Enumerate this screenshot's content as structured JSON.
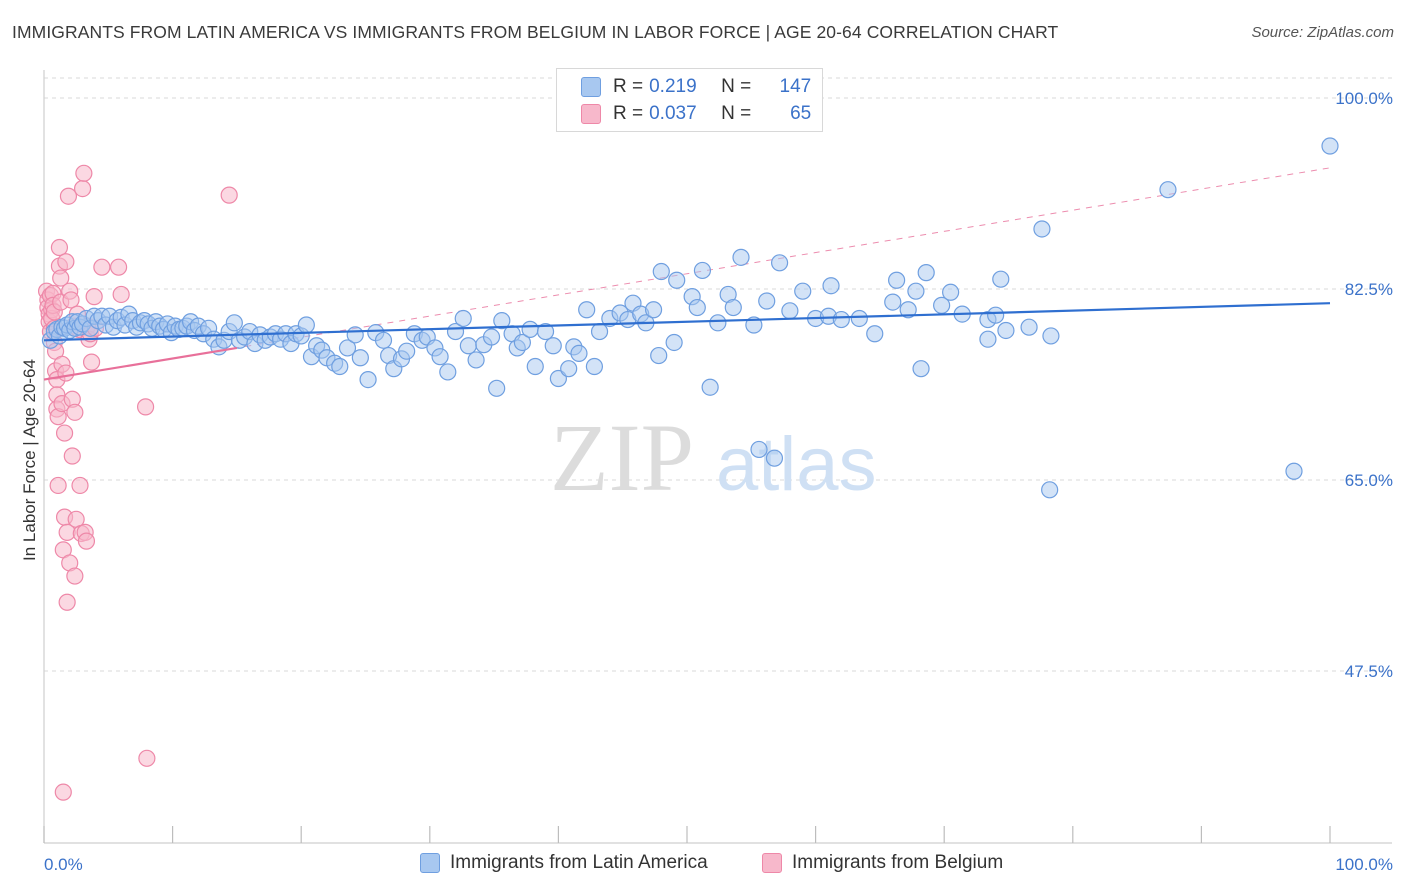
{
  "header": {
    "title": "IMMIGRANTS FROM LATIN AMERICA VS IMMIGRANTS FROM BELGIUM IN LABOR FORCE | AGE 20-64 CORRELATION CHART",
    "source": "Source: ZipAtlas.com"
  },
  "legend_top": {
    "rows": [
      {
        "r_label": "R =",
        "r_value": "0.219",
        "n_label": "N =",
        "n_value": "147"
      },
      {
        "r_label": "R =",
        "r_value": "0.037",
        "n_label": "N =",
        "n_value": "65"
      }
    ]
  },
  "legend_bottom": {
    "items": [
      "Immigrants from Latin America",
      "Immigrants from Belgium"
    ]
  },
  "watermark": {
    "zip": "ZIP",
    "atlas": "atlas"
  },
  "colors": {
    "blue_fill": "#a8c8f0",
    "blue_stroke": "#6f9fe0",
    "blue_line": "#2f6fd0",
    "pink_fill": "#f7b8cb",
    "pink_stroke": "#ee88a8",
    "pink_line": "#e8709a",
    "axis_label": "#3b72c9",
    "grid": "#d9d9d9"
  },
  "chart_data": {
    "type": "scatter",
    "title": "IMMIGRANTS FROM LATIN AMERICA VS IMMIGRANTS FROM BELGIUM IN LABOR FORCE | AGE 20-64 CORRELATION CHART",
    "xlabel": "",
    "ylabel": "In Labor Force | Age 20-64",
    "x_tick_labels": [
      "0.0%",
      "100.0%"
    ],
    "y_tick_labels": [
      "100.0%",
      "82.5%",
      "65.0%",
      "47.5%"
    ],
    "y_ticks": [
      100.0,
      82.5,
      65.0,
      47.5
    ],
    "xlim": [
      0,
      100
    ],
    "ylim": [
      29.5,
      101.5
    ],
    "grid": true,
    "legend_position": "bottom",
    "series": [
      {
        "name": "Immigrants from Latin America",
        "color": "#a8c8f0",
        "r": 0.219,
        "n": 147,
        "trend": {
          "x": [
            0,
            100
          ],
          "y": [
            77.8,
            81.2
          ]
        },
        "points": [
          [
            0.5,
            77.8
          ],
          [
            0.8,
            78.6
          ],
          [
            1.0,
            78.8
          ],
          [
            1.2,
            78.2
          ],
          [
            1.4,
            79.0
          ],
          [
            1.6,
            78.9
          ],
          [
            1.8,
            79.2
          ],
          [
            2.0,
            78.7
          ],
          [
            2.2,
            79.5
          ],
          [
            2.4,
            78.9
          ],
          [
            2.6,
            79.5
          ],
          [
            2.8,
            79.0
          ],
          [
            3.0,
            79.3
          ],
          [
            3.3,
            79.8
          ],
          [
            3.6,
            78.9
          ],
          [
            3.9,
            80.0
          ],
          [
            4.2,
            79.6
          ],
          [
            4.5,
            80.0
          ],
          [
            4.8,
            79.2
          ],
          [
            5.1,
            80.0
          ],
          [
            5.4,
            79.0
          ],
          [
            5.7,
            79.6
          ],
          [
            6.0,
            79.9
          ],
          [
            6.3,
            79.2
          ],
          [
            6.6,
            80.2
          ],
          [
            6.9,
            79.6
          ],
          [
            7.2,
            79.0
          ],
          [
            7.5,
            79.4
          ],
          [
            7.8,
            79.6
          ],
          [
            8.1,
            79.3
          ],
          [
            8.4,
            78.9
          ],
          [
            8.7,
            79.5
          ],
          [
            9.0,
            79.1
          ],
          [
            9.3,
            78.8
          ],
          [
            9.6,
            79.3
          ],
          [
            9.9,
            78.5
          ],
          [
            10.2,
            79.1
          ],
          [
            10.5,
            78.8
          ],
          [
            10.8,
            78.9
          ],
          [
            11.1,
            79.1
          ],
          [
            11.4,
            79.5
          ],
          [
            11.7,
            78.7
          ],
          [
            12.0,
            79.1
          ],
          [
            12.4,
            78.4
          ],
          [
            12.8,
            78.9
          ],
          [
            13.2,
            77.9
          ],
          [
            13.6,
            77.2
          ],
          [
            14.0,
            77.8
          ],
          [
            14.4,
            78.6
          ],
          [
            14.8,
            79.4
          ],
          [
            15.2,
            77.8
          ],
          [
            15.6,
            78.1
          ],
          [
            16.0,
            78.6
          ],
          [
            16.4,
            77.5
          ],
          [
            16.8,
            78.3
          ],
          [
            17.2,
            77.8
          ],
          [
            17.6,
            78.1
          ],
          [
            18.0,
            78.4
          ],
          [
            18.4,
            77.9
          ],
          [
            18.8,
            78.4
          ],
          [
            19.2,
            77.5
          ],
          [
            19.6,
            78.4
          ],
          [
            20.0,
            78.2
          ],
          [
            20.4,
            79.2
          ],
          [
            20.8,
            76.3
          ],
          [
            21.2,
            77.3
          ],
          [
            21.6,
            76.9
          ],
          [
            22.0,
            76.2
          ],
          [
            22.6,
            75.7
          ],
          [
            23.0,
            75.4
          ],
          [
            23.6,
            77.1
          ],
          [
            24.2,
            78.3
          ],
          [
            24.6,
            76.2
          ],
          [
            25.2,
            74.2
          ],
          [
            25.8,
            78.5
          ],
          [
            26.4,
            77.8
          ],
          [
            26.8,
            76.4
          ],
          [
            27.2,
            75.2
          ],
          [
            27.8,
            76.1
          ],
          [
            28.2,
            76.8
          ],
          [
            28.8,
            78.4
          ],
          [
            29.4,
            77.8
          ],
          [
            29.8,
            78.1
          ],
          [
            30.4,
            77.1
          ],
          [
            30.8,
            76.3
          ],
          [
            31.4,
            74.9
          ],
          [
            32.0,
            78.6
          ],
          [
            32.6,
            79.8
          ],
          [
            33.0,
            77.3
          ],
          [
            33.6,
            76.0
          ],
          [
            34.2,
            77.4
          ],
          [
            34.8,
            78.1
          ],
          [
            35.2,
            73.4
          ],
          [
            35.6,
            79.6
          ],
          [
            36.4,
            78.4
          ],
          [
            36.8,
            77.1
          ],
          [
            37.2,
            77.6
          ],
          [
            37.8,
            78.8
          ],
          [
            38.2,
            75.4
          ],
          [
            39.0,
            78.6
          ],
          [
            39.6,
            77.3
          ],
          [
            40.0,
            74.3
          ],
          [
            40.8,
            75.2
          ],
          [
            41.2,
            77.2
          ],
          [
            41.6,
            76.6
          ],
          [
            42.2,
            80.6
          ],
          [
            42.8,
            75.4
          ],
          [
            43.2,
            78.6
          ],
          [
            44.0,
            79.8
          ],
          [
            44.8,
            80.3
          ],
          [
            45.4,
            79.7
          ],
          [
            45.8,
            81.2
          ],
          [
            46.4,
            80.2
          ],
          [
            46.8,
            79.4
          ],
          [
            47.4,
            80.6
          ],
          [
            47.8,
            76.4
          ],
          [
            48.0,
            84.1
          ],
          [
            49.0,
            77.6
          ],
          [
            49.2,
            83.3
          ],
          [
            50.4,
            81.8
          ],
          [
            50.8,
            80.8
          ],
          [
            51.2,
            84.2
          ],
          [
            51.8,
            73.5
          ],
          [
            52.4,
            79.4
          ],
          [
            53.2,
            82.0
          ],
          [
            53.6,
            80.8
          ],
          [
            54.2,
            85.4
          ],
          [
            55.2,
            79.2
          ],
          [
            55.6,
            67.8
          ],
          [
            56.2,
            81.4
          ],
          [
            56.8,
            67.0
          ],
          [
            57.2,
            84.9
          ],
          [
            58.0,
            80.5
          ],
          [
            59.0,
            82.3
          ],
          [
            60.0,
            79.8
          ],
          [
            61.0,
            80.0
          ],
          [
            61.2,
            82.8
          ],
          [
            62.0,
            79.7
          ],
          [
            63.4,
            79.8
          ],
          [
            64.6,
            78.4
          ],
          [
            66.0,
            81.3
          ],
          [
            66.3,
            83.3
          ],
          [
            67.2,
            80.6
          ],
          [
            67.8,
            82.3
          ],
          [
            68.2,
            75.2
          ],
          [
            68.6,
            84.0
          ],
          [
            69.8,
            81.0
          ],
          [
            70.5,
            82.2
          ],
          [
            71.4,
            80.2
          ],
          [
            73.4,
            77.9
          ],
          [
            73.4,
            79.7
          ],
          [
            74.0,
            80.1
          ],
          [
            74.4,
            83.4
          ],
          [
            74.8,
            78.7
          ],
          [
            76.6,
            79.0
          ],
          [
            77.6,
            88.0
          ],
          [
            78.3,
            78.2
          ],
          [
            78.2,
            64.1
          ],
          [
            87.4,
            91.6
          ],
          [
            97.2,
            65.8
          ],
          [
            100.0,
            95.6
          ]
        ]
      },
      {
        "name": "Immigrants from Belgium",
        "color": "#f7b8cb",
        "r": 0.037,
        "n": 65,
        "trend": {
          "x": [
            0,
            15
          ],
          "y": [
            74.2,
            77.1
          ]
        },
        "trend_extended": {
          "x": [
            0,
            100
          ],
          "y": [
            74.2,
            93.6
          ]
        },
        "points": [
          [
            0.2,
            82.3
          ],
          [
            0.3,
            81.5
          ],
          [
            0.3,
            80.8
          ],
          [
            0.4,
            80.2
          ],
          [
            0.4,
            79.5
          ],
          [
            0.5,
            78.6
          ],
          [
            0.5,
            81.9
          ],
          [
            0.6,
            80.6
          ],
          [
            0.6,
            79.8
          ],
          [
            0.7,
            82.1
          ],
          [
            0.7,
            81.0
          ],
          [
            0.8,
            80.4
          ],
          [
            0.8,
            78.9
          ],
          [
            0.8,
            77.6
          ],
          [
            0.9,
            76.8
          ],
          [
            0.9,
            75.0
          ],
          [
            1.0,
            74.2
          ],
          [
            1.0,
            72.8
          ],
          [
            1.0,
            71.5
          ],
          [
            1.1,
            70.8
          ],
          [
            1.1,
            64.5
          ],
          [
            1.2,
            86.3
          ],
          [
            1.2,
            84.6
          ],
          [
            1.3,
            83.5
          ],
          [
            1.3,
            81.3
          ],
          [
            1.4,
            75.6
          ],
          [
            1.4,
            72.0
          ],
          [
            1.5,
            58.6
          ],
          [
            1.5,
            36.4
          ],
          [
            1.6,
            61.6
          ],
          [
            1.6,
            69.3
          ],
          [
            1.7,
            85.0
          ],
          [
            1.7,
            74.8
          ],
          [
            1.8,
            53.8
          ],
          [
            1.8,
            60.2
          ],
          [
            1.9,
            91.0
          ],
          [
            2.0,
            57.4
          ],
          [
            2.0,
            82.3
          ],
          [
            2.1,
            81.5
          ],
          [
            2.2,
            72.4
          ],
          [
            2.2,
            67.2
          ],
          [
            2.3,
            79.1
          ],
          [
            2.4,
            56.2
          ],
          [
            2.4,
            71.2
          ],
          [
            2.5,
            61.4
          ],
          [
            2.6,
            80.2
          ],
          [
            2.7,
            78.8
          ],
          [
            2.8,
            64.5
          ],
          [
            2.9,
            60.1
          ],
          [
            3.0,
            91.7
          ],
          [
            3.1,
            93.1
          ],
          [
            3.2,
            60.2
          ],
          [
            3.3,
            59.4
          ],
          [
            3.4,
            79.1
          ],
          [
            3.5,
            77.9
          ],
          [
            3.6,
            78.4
          ],
          [
            3.7,
            75.8
          ],
          [
            3.9,
            81.8
          ],
          [
            4.0,
            78.9
          ],
          [
            4.5,
            84.5
          ],
          [
            5.8,
            84.5
          ],
          [
            6.0,
            82.0
          ],
          [
            7.9,
            71.7
          ],
          [
            8.0,
            39.5
          ],
          [
            14.4,
            91.1
          ]
        ]
      }
    ]
  }
}
